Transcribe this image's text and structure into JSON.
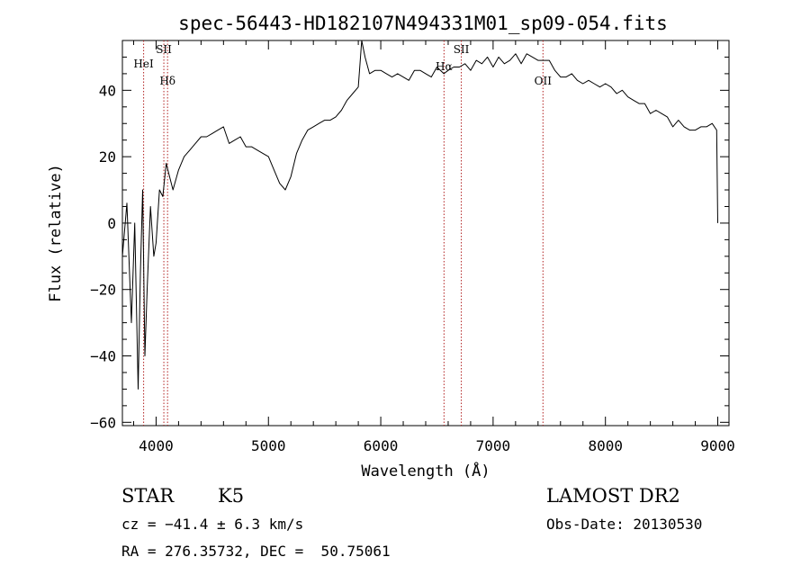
{
  "chart_data": {
    "type": "line",
    "title": "spec-56443-HD182107N494331M01_sp09-054.fits",
    "xlabel": "Wavelength (Å)",
    "ylabel": "Flux (relative)",
    "xlim": [
      3700,
      9100
    ],
    "ylim": [
      -61,
      55
    ],
    "xticks": [
      4000,
      5000,
      6000,
      7000,
      8000,
      9000
    ],
    "yticks": [
      -60,
      -40,
      -20,
      0,
      20,
      40
    ],
    "grid": false,
    "series": [
      {
        "color": "#000000",
        "x": [
          3700,
          3740,
          3780,
          3810,
          3840,
          3860,
          3880,
          3900,
          3920,
          3950,
          3980,
          4000,
          4030,
          4060,
          4090,
          4120,
          4150,
          4200,
          4250,
          4300,
          4350,
          4400,
          4450,
          4500,
          4550,
          4600,
          4650,
          4700,
          4750,
          4800,
          4850,
          4900,
          4950,
          5000,
          5050,
          5100,
          5150,
          5200,
          5250,
          5300,
          5350,
          5400,
          5450,
          5500,
          5550,
          5600,
          5650,
          5700,
          5750,
          5800,
          5830,
          5860,
          5900,
          5950,
          6000,
          6050,
          6100,
          6150,
          6200,
          6250,
          6300,
          6350,
          6400,
          6450,
          6500,
          6562,
          6600,
          6650,
          6700,
          6750,
          6800,
          6850,
          6900,
          6950,
          7000,
          7050,
          7100,
          7150,
          7200,
          7250,
          7300,
          7350,
          7400,
          7450,
          7500,
          7550,
          7600,
          7650,
          7700,
          7750,
          7800,
          7850,
          7900,
          7950,
          8000,
          8050,
          8100,
          8150,
          8200,
          8250,
          8300,
          8350,
          8400,
          8450,
          8500,
          8550,
          8600,
          8650,
          8700,
          8750,
          8800,
          8850,
          8900,
          8950,
          8990,
          9000
        ],
        "y": [
          -10,
          6,
          -30,
          0,
          -50,
          -15,
          10,
          -40,
          -20,
          5,
          -10,
          -6,
          10,
          8,
          18,
          14,
          10,
          16,
          20,
          22,
          24,
          26,
          26,
          27,
          28,
          29,
          24,
          25,
          26,
          23,
          23,
          22,
          21,
          20,
          16,
          12,
          10,
          14,
          21,
          25,
          28,
          29,
          30,
          31,
          31,
          32,
          34,
          37,
          39,
          41,
          55,
          50,
          45,
          46,
          46,
          45,
          44,
          45,
          44,
          43,
          46,
          46,
          45,
          44,
          47,
          45,
          46,
          47,
          47,
          48,
          46,
          49,
          48,
          50,
          47,
          50,
          48,
          49,
          51,
          48,
          51,
          50,
          49,
          49,
          49,
          46,
          44,
          44,
          45,
          43,
          42,
          43,
          42,
          41,
          42,
          41,
          39,
          40,
          38,
          37,
          36,
          36,
          33,
          34,
          33,
          32,
          29,
          31,
          29,
          28,
          28,
          29,
          29,
          30,
          28,
          0
        ]
      }
    ],
    "lines": [
      {
        "x": 3889,
        "label": "HeI"
      },
      {
        "x": 4069,
        "label": "SII"
      },
      {
        "x": 4102,
        "label": "Hδ"
      },
      {
        "x": 6563,
        "label": "Hα"
      },
      {
        "x": 6717,
        "label": "SII"
      },
      {
        "x": 7444,
        "label": "OII"
      }
    ]
  },
  "info": {
    "object_class": "STAR",
    "subclass": "K5",
    "redshift": "cz = −41.4 ± 6.3 km/s",
    "coordinates": "RA = 276.35732, DEC =  50.75061",
    "survey": "LAMOST DR2",
    "obs_date": "Obs-Date: 20130530"
  },
  "colors": {
    "spectrum": "#000000",
    "line_marker": "#b22222",
    "axes": "#000000"
  }
}
